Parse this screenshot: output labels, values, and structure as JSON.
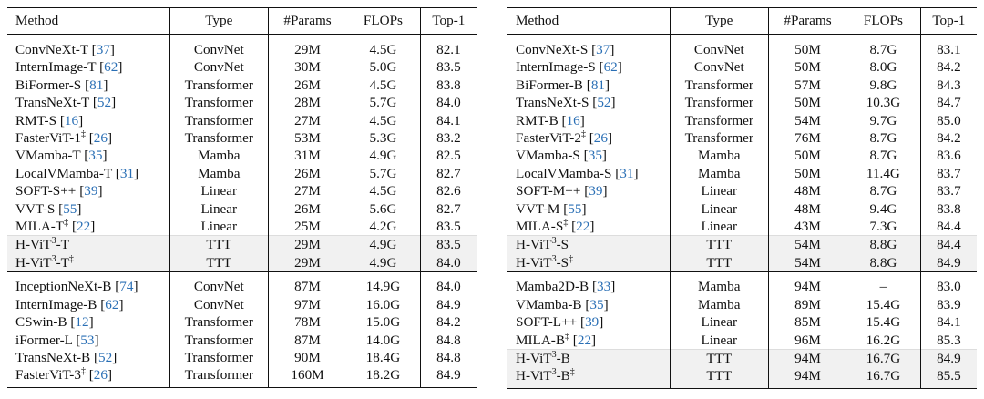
{
  "header": {
    "method": "Method",
    "type": "Type",
    "params": "#Params",
    "flops": "FLOPs",
    "top1": "Top-1"
  },
  "left": {
    "sec1": [
      {
        "name": "ConvNeXt-T",
        "cite": "37",
        "sup": "",
        "type": "ConvNet",
        "params": "29M",
        "flops": "4.5G",
        "top1": "82.1"
      },
      {
        "name": "InternImage-T",
        "cite": "62",
        "sup": "",
        "type": "ConvNet",
        "params": "30M",
        "flops": "5.0G",
        "top1": "83.5"
      },
      {
        "name": "BiFormer-S",
        "cite": "81",
        "sup": "",
        "type": "Transformer",
        "params": "26M",
        "flops": "4.5G",
        "top1": "83.8"
      },
      {
        "name": "TransNeXt-T",
        "cite": "52",
        "sup": "",
        "type": "Transformer",
        "params": "28M",
        "flops": "5.7G",
        "top1": "84.0"
      },
      {
        "name": "RMT-S",
        "cite": "16",
        "sup": "",
        "type": "Transformer",
        "params": "27M",
        "flops": "4.5G",
        "top1": "84.1"
      },
      {
        "name": "FasterViT-1",
        "cite": "26",
        "sup": "‡",
        "type": "Transformer",
        "params": "53M",
        "flops": "5.3G",
        "top1": "83.2"
      },
      {
        "name": "VMamba-T",
        "cite": "35",
        "sup": "",
        "type": "Mamba",
        "params": "31M",
        "flops": "4.9G",
        "top1": "82.5"
      },
      {
        "name": "LocalVMamba-T",
        "cite": "31",
        "sup": "",
        "type": "Mamba",
        "params": "26M",
        "flops": "5.7G",
        "top1": "82.7"
      },
      {
        "name": "SOFT-S++",
        "cite": "39",
        "sup": "",
        "type": "Linear",
        "params": "27M",
        "flops": "4.5G",
        "top1": "82.6"
      },
      {
        "name": "VVT-S",
        "cite": "55",
        "sup": "",
        "type": "Linear",
        "params": "26M",
        "flops": "5.6G",
        "top1": "82.7"
      },
      {
        "name": "MILA-T",
        "cite": "22",
        "sup": "‡",
        "type": "Linear",
        "params": "25M",
        "flops": "4.2G",
        "top1": "83.5"
      }
    ],
    "ours1": [
      {
        "pre": "H-ViT",
        "exp": "3",
        "post": "-T",
        "sup": "",
        "type": "TTT",
        "params": "29M",
        "flops": "4.9G",
        "top1": "83.5"
      },
      {
        "pre": "H-ViT",
        "exp": "3",
        "post": "-T",
        "sup": "‡",
        "type": "TTT",
        "params": "29M",
        "flops": "4.9G",
        "top1": "84.0"
      }
    ],
    "sec2": [
      {
        "name": "InceptionNeXt-B",
        "cite": "74",
        "sup": "",
        "type": "ConvNet",
        "params": "87M",
        "flops": "14.9G",
        "top1": "84.0"
      },
      {
        "name": "InternImage-B",
        "cite": "62",
        "sup": "",
        "type": "ConvNet",
        "params": "97M",
        "flops": "16.0G",
        "top1": "84.9"
      },
      {
        "name": "CSwin-B",
        "cite": "12",
        "sup": "",
        "type": "Transformer",
        "params": "78M",
        "flops": "15.0G",
        "top1": "84.2"
      },
      {
        "name": "iFormer-L",
        "cite": "53",
        "sup": "",
        "type": "Transformer",
        "params": "87M",
        "flops": "14.0G",
        "top1": "84.8"
      },
      {
        "name": "TransNeXt-B",
        "cite": "52",
        "sup": "",
        "type": "Transformer",
        "params": "90M",
        "flops": "18.4G",
        "top1": "84.8"
      },
      {
        "name": "FasterViT-3",
        "cite": "26",
        "sup": "‡",
        "type": "Transformer",
        "params": "160M",
        "flops": "18.2G",
        "top1": "84.9"
      }
    ]
  },
  "right": {
    "sec1": [
      {
        "name": "ConvNeXt-S",
        "cite": "37",
        "sup": "",
        "type": "ConvNet",
        "params": "50M",
        "flops": "8.7G",
        "top1": "83.1"
      },
      {
        "name": "InternImage-S",
        "cite": "62",
        "sup": "",
        "type": "ConvNet",
        "params": "50M",
        "flops": "8.0G",
        "top1": "84.2"
      },
      {
        "name": "BiFormer-B",
        "cite": "81",
        "sup": "",
        "type": "Transformer",
        "params": "57M",
        "flops": "9.8G",
        "top1": "84.3"
      },
      {
        "name": "TransNeXt-S",
        "cite": "52",
        "sup": "",
        "type": "Transformer",
        "params": "50M",
        "flops": "10.3G",
        "top1": "84.7"
      },
      {
        "name": "RMT-B",
        "cite": "16",
        "sup": "",
        "type": "Transformer",
        "params": "54M",
        "flops": "9.7G",
        "top1": "85.0"
      },
      {
        "name": "FasterViT-2",
        "cite": "26",
        "sup": "‡",
        "type": "Transformer",
        "params": "76M",
        "flops": "8.7G",
        "top1": "84.2"
      },
      {
        "name": "VMamba-S",
        "cite": "35",
        "sup": "",
        "type": "Mamba",
        "params": "50M",
        "flops": "8.7G",
        "top1": "83.6"
      },
      {
        "name": "LocalVMamba-S",
        "cite": "31",
        "sup": "",
        "type": "Mamba",
        "params": "50M",
        "flops": "11.4G",
        "top1": "83.7"
      },
      {
        "name": "SOFT-M++",
        "cite": "39",
        "sup": "",
        "type": "Linear",
        "params": "48M",
        "flops": "8.7G",
        "top1": "83.7"
      },
      {
        "name": "VVT-M",
        "cite": "55",
        "sup": "",
        "type": "Linear",
        "params": "48M",
        "flops": "9.4G",
        "top1": "83.8"
      },
      {
        "name": "MILA-S",
        "cite": "22",
        "sup": "‡",
        "type": "Linear",
        "params": "43M",
        "flops": "7.3G",
        "top1": "84.4"
      }
    ],
    "ours1": [
      {
        "pre": "H-ViT",
        "exp": "3",
        "post": "-S",
        "sup": "",
        "type": "TTT",
        "params": "54M",
        "flops": "8.8G",
        "top1": "84.4"
      },
      {
        "pre": "H-ViT",
        "exp": "3",
        "post": "-S",
        "sup": "‡",
        "type": "TTT",
        "params": "54M",
        "flops": "8.8G",
        "top1": "84.9"
      }
    ],
    "sec2": [
      {
        "name": "Mamba2D-B",
        "cite": "33",
        "sup": "",
        "type": "Mamba",
        "params": "94M",
        "flops": "–",
        "top1": "83.0"
      },
      {
        "name": "VMamba-B",
        "cite": "35",
        "sup": "",
        "type": "Mamba",
        "params": "89M",
        "flops": "15.4G",
        "top1": "83.9"
      },
      {
        "name": "SOFT-L++",
        "cite": "39",
        "sup": "",
        "type": "Linear",
        "params": "85M",
        "flops": "15.4G",
        "top1": "84.1"
      },
      {
        "name": "MILA-B",
        "cite": "22",
        "sup": "‡",
        "type": "Linear",
        "params": "96M",
        "flops": "16.2G",
        "top1": "85.3"
      }
    ],
    "ours2": [
      {
        "pre": "H-ViT",
        "exp": "3",
        "post": "-B",
        "sup": "",
        "type": "TTT",
        "params": "94M",
        "flops": "16.7G",
        "top1": "84.9"
      },
      {
        "pre": "H-ViT",
        "exp": "3",
        "post": "-B",
        "sup": "‡",
        "type": "TTT",
        "params": "94M",
        "flops": "16.7G",
        "top1": "85.5"
      }
    ]
  }
}
